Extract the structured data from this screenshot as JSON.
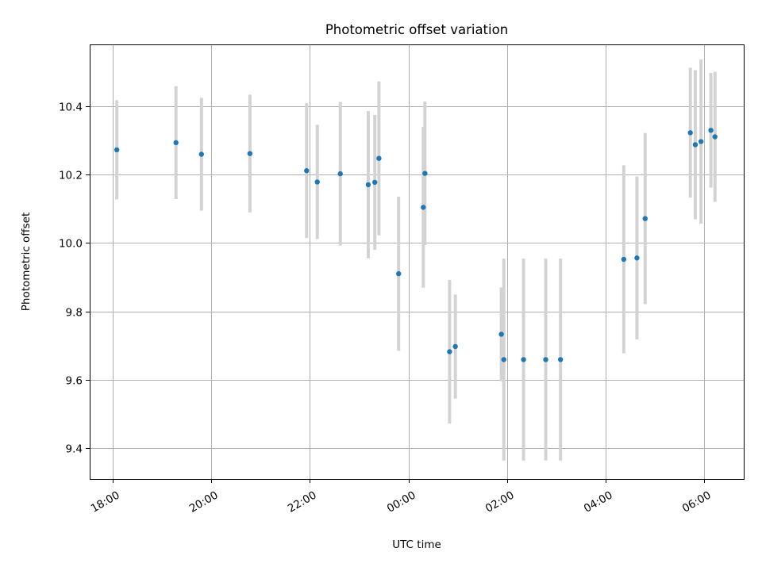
{
  "chart_data": {
    "type": "scatter",
    "title": "Photometric offset variation",
    "xlabel": "UTC time",
    "ylabel": "Photometric offset",
    "x_ticks": [
      "18:00",
      "20:00",
      "22:00",
      "00:00",
      "02:00",
      "04:00",
      "06:00"
    ],
    "y_ticks": [
      "9.4",
      "9.6",
      "9.8",
      "10.0",
      "10.2",
      "10.4"
    ],
    "xlim": [
      "17:32",
      "06:48"
    ],
    "ylim": [
      9.31,
      10.58
    ],
    "grid": true,
    "colors": {
      "point": "#1f77b4",
      "errorbar": "#d3d3d3",
      "grid": "#b0b0b0"
    },
    "points": [
      {
        "time": "18:05",
        "y": 10.272,
        "yerr": 0.145
      },
      {
        "time": "19:17",
        "y": 10.293,
        "yerr": 0.165
      },
      {
        "time": "19:48",
        "y": 10.259,
        "yerr": 0.165
      },
      {
        "time": "20:47",
        "y": 10.261,
        "yerr": 0.172
      },
      {
        "time": "21:56",
        "y": 10.211,
        "yerr": 0.197
      },
      {
        "time": "22:09",
        "y": 10.178,
        "yerr": 0.167
      },
      {
        "time": "22:37",
        "y": 10.202,
        "yerr": 0.21
      },
      {
        "time": "23:11",
        "y": 10.17,
        "yerr": 0.215
      },
      {
        "time": "23:19",
        "y": 10.177,
        "yerr": 0.197
      },
      {
        "time": "23:24",
        "y": 10.247,
        "yerr": 0.225
      },
      {
        "time": "23:48",
        "y": 9.91,
        "yerr": 0.225
      },
      {
        "time": "00:18",
        "y": 10.104,
        "yerr": 0.235
      },
      {
        "time": "00:20",
        "y": 10.203,
        "yerr": 0.21
      },
      {
        "time": "00:50",
        "y": 9.682,
        "yerr": 0.21
      },
      {
        "time": "00:57",
        "y": 9.697,
        "yerr": 0.152
      },
      {
        "time": "01:53",
        "y": 9.733,
        "yerr": 0.137
      },
      {
        "time": "01:56",
        "y": 9.659,
        "yerr": 0.295
      },
      {
        "time": "02:20",
        "y": 9.659,
        "yerr": 0.295
      },
      {
        "time": "02:47",
        "y": 9.659,
        "yerr": 0.295
      },
      {
        "time": "03:05",
        "y": 9.659,
        "yerr": 0.295
      },
      {
        "time": "04:22",
        "y": 9.952,
        "yerr": 0.275
      },
      {
        "time": "04:38",
        "y": 9.956,
        "yerr": 0.238
      },
      {
        "time": "04:48",
        "y": 10.071,
        "yerr": 0.25
      },
      {
        "time": "05:43",
        "y": 10.322,
        "yerr": 0.19
      },
      {
        "time": "05:49",
        "y": 10.287,
        "yerr": 0.218
      },
      {
        "time": "05:56",
        "y": 10.296,
        "yerr": 0.24
      },
      {
        "time": "06:08",
        "y": 10.329,
        "yerr": 0.168
      },
      {
        "time": "06:13",
        "y": 10.31,
        "yerr": 0.19
      }
    ]
  }
}
